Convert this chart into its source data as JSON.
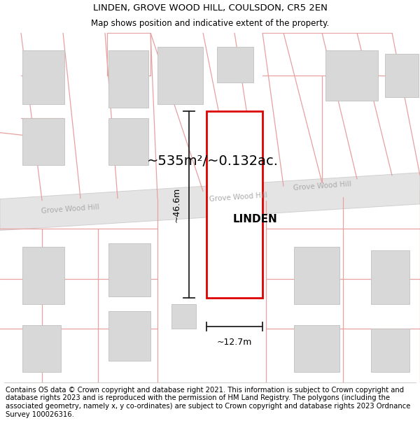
{
  "title_line1": "LINDEN, GROVE WOOD HILL, COULSDON, CR5 2EN",
  "title_line2": "Map shows position and indicative extent of the property.",
  "footer_text": "Contains OS data © Crown copyright and database right 2021. This information is subject to Crown copyright and database rights 2023 and is reproduced with the permission of HM Land Registry. The polygons (including the associated geometry, namely x, y co-ordinates) are subject to Crown copyright and database rights 2023 Ordnance Survey 100026316.",
  "area_text": "~535m²/~0.132ac.",
  "label_width": "~12.7m",
  "label_height": "~46.6m",
  "property_name": "LINDEN",
  "road_name_left": "Grove Wood Hill",
  "road_name_right": "Grove Wood Hill",
  "bg_color": "#ffffff",
  "map_bg": "#f8f8f8",
  "road_fill": "#e4e4e4",
  "road_edge": "#d0d0d0",
  "plot_line_color": "#dd0000",
  "dim_line_color": "#222222",
  "pink_line_color": "#e8a0a0",
  "building_fill": "#d8d8d8",
  "building_stroke": "#c0c0c0",
  "title_fontsize": 9.5,
  "subtitle_fontsize": 8.5,
  "footer_fontsize": 7.2,
  "road_label_color": "#aaaaaa",
  "road_label_size": 7.5
}
